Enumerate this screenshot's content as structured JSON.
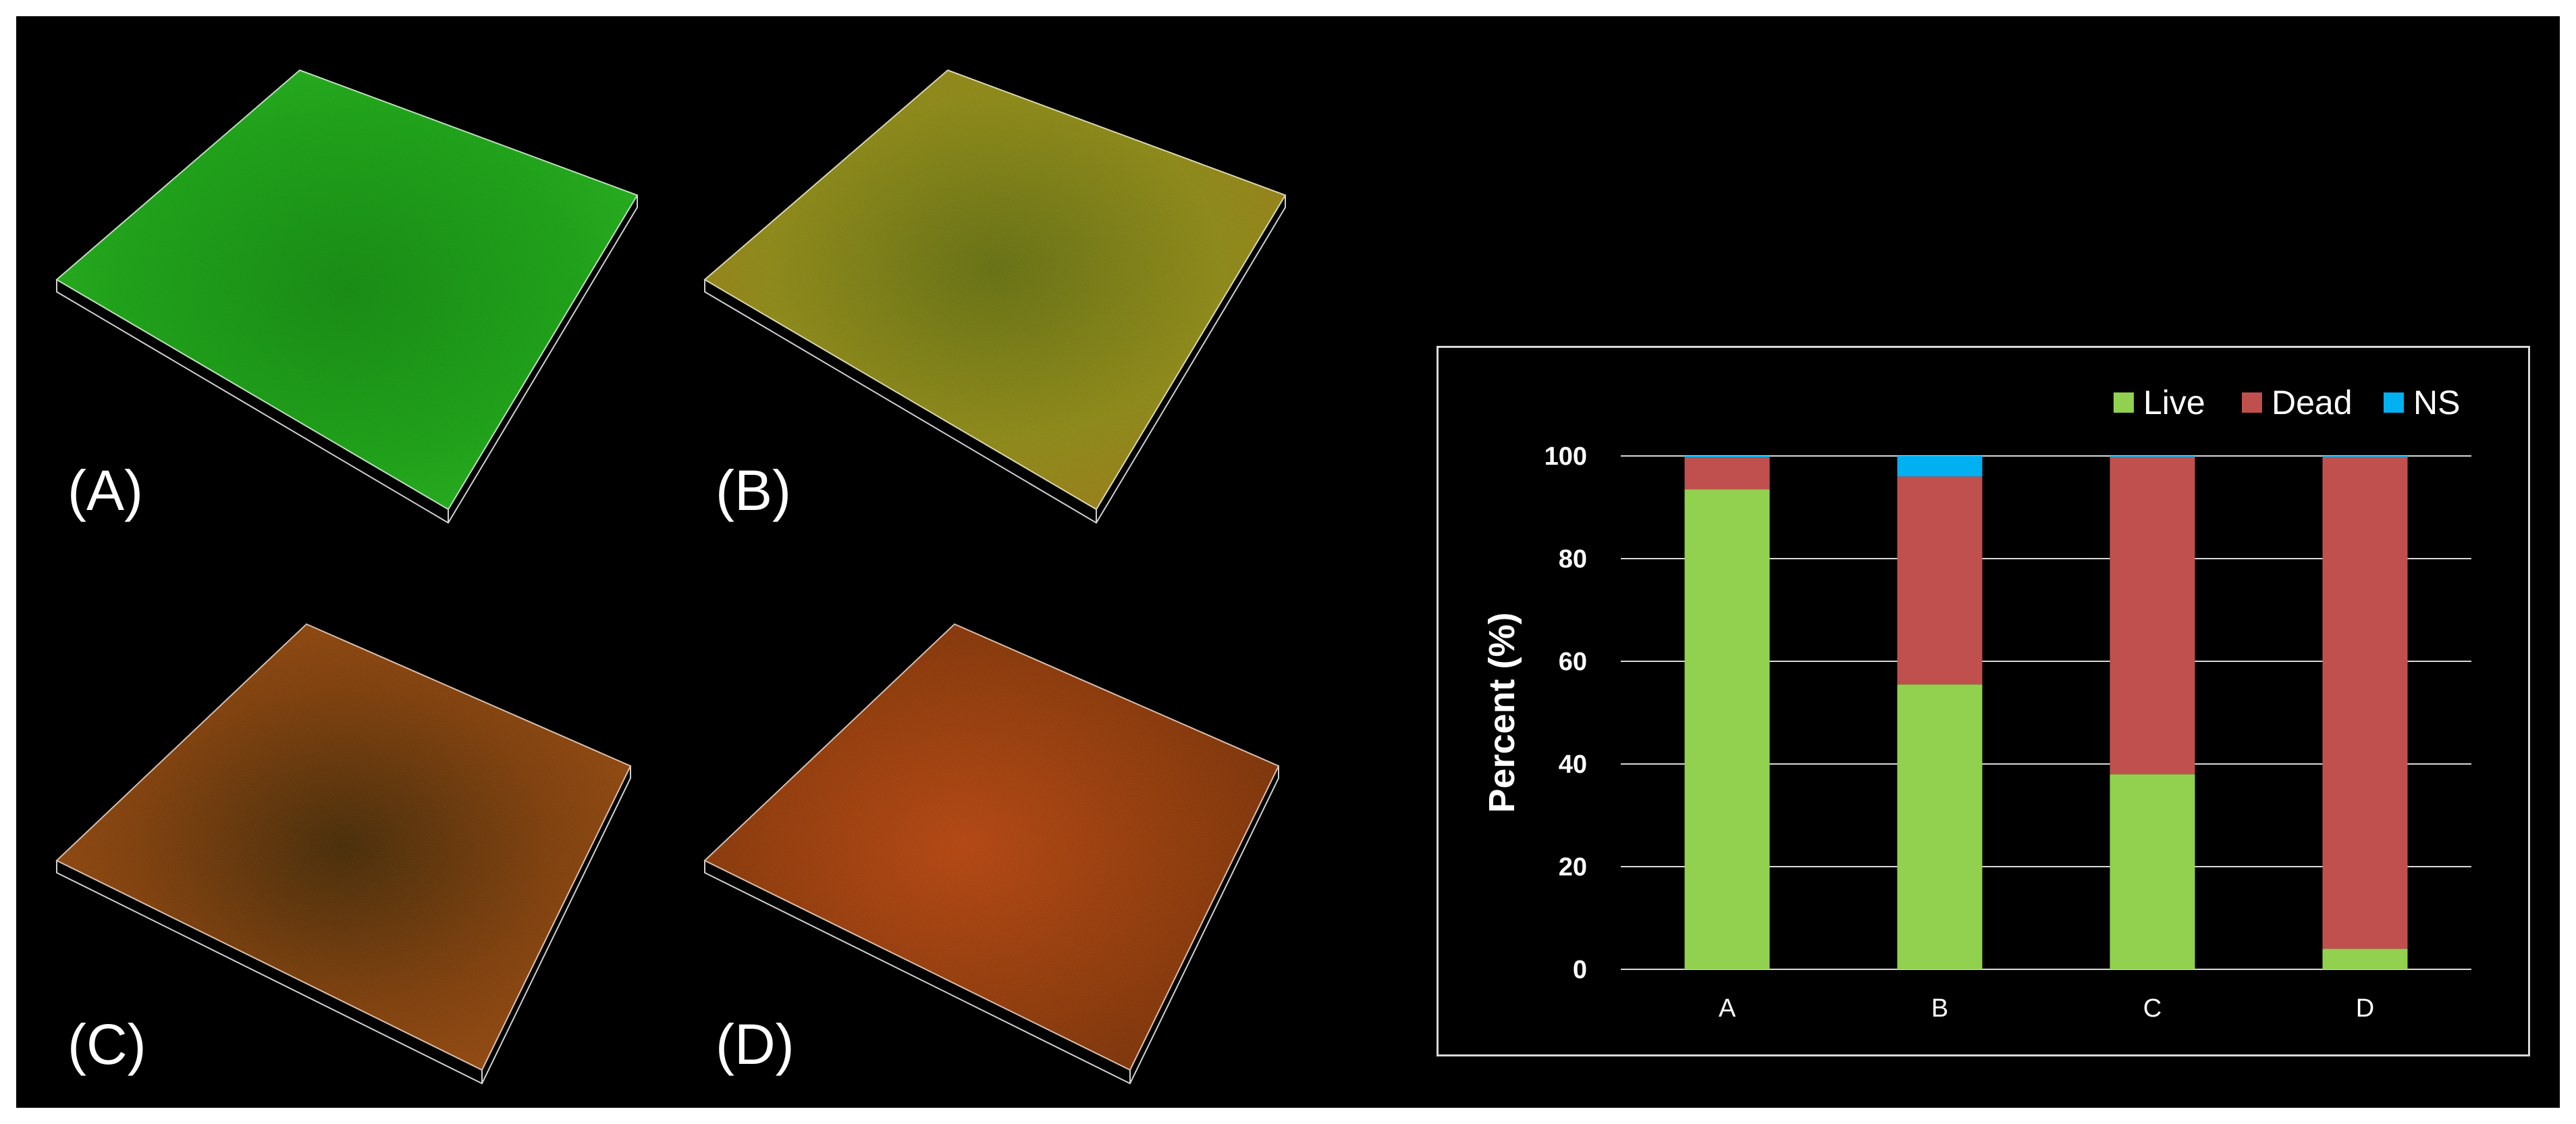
{
  "panels": [
    {
      "id": "A",
      "label": "(A)",
      "dominant": "green"
    },
    {
      "id": "B",
      "label": "(B)",
      "dominant": "green-red"
    },
    {
      "id": "C",
      "label": "(C)",
      "dominant": "red-dark"
    },
    {
      "id": "D",
      "label": "(D)",
      "dominant": "red"
    }
  ],
  "colors": {
    "background": "#000000",
    "live": "#92d050",
    "dead": "#c0504d",
    "ns": "#00b0f0",
    "text": "#ffffff",
    "grid": "#d9d9d9"
  },
  "chart_data": {
    "type": "bar",
    "stacked": true,
    "categories": [
      "A",
      "B",
      "C",
      "D"
    ],
    "series": [
      {
        "name": "Live",
        "values": [
          93.5,
          55.5,
          38,
          4
        ]
      },
      {
        "name": "Dead",
        "values": [
          6.2,
          40.5,
          61.8,
          95.8
        ]
      },
      {
        "name": "NS",
        "values": [
          0.3,
          4,
          0.2,
          0.2
        ]
      }
    ],
    "ylabel": "Percent (%)",
    "xlabel": "",
    "ylim": [
      0,
      100
    ],
    "yticks": [
      0,
      20,
      40,
      60,
      80,
      100
    ],
    "grid": true,
    "legend": "top-right"
  }
}
